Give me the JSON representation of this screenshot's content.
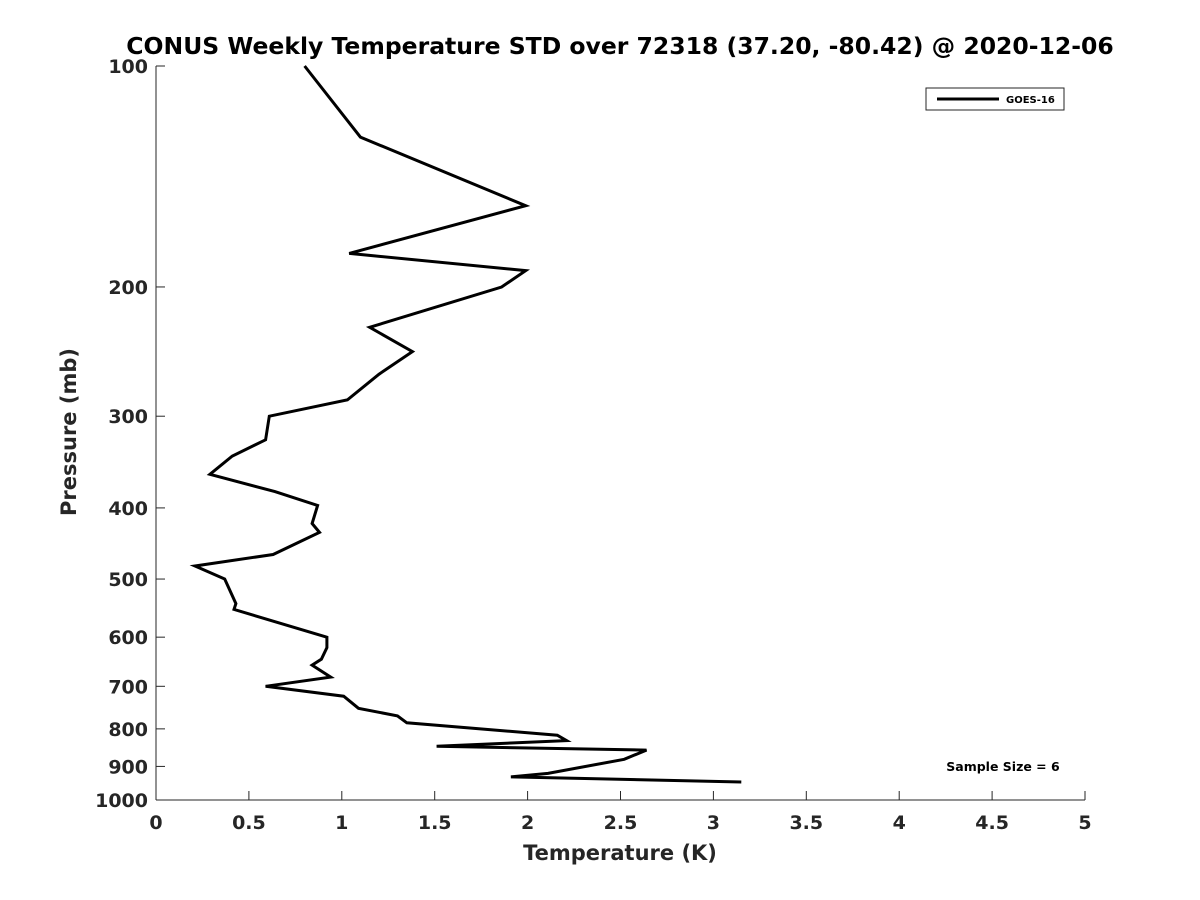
{
  "chart_data": {
    "type": "line",
    "title": "CONUS Weekly Temperature STD over 72318 (37.20, -80.42) @ 2020-12-06",
    "xlabel": "Temperature (K)",
    "ylabel": "Pressure (mb)",
    "xlim": [
      0,
      5
    ],
    "ylim": [
      100,
      1000
    ],
    "y_scale": "log",
    "y_reversed": true,
    "x_ticks": [
      "0",
      "0.5",
      "1",
      "1.5",
      "2",
      "2.5",
      "3",
      "3.5",
      "4",
      "4.5",
      "5"
    ],
    "y_ticks": [
      "100",
      "200",
      "300",
      "400",
      "500",
      "600",
      "700",
      "800",
      "900",
      "1000"
    ],
    "grid": false,
    "legend": {
      "position": "top-right",
      "entries": [
        "GOES-16"
      ]
    },
    "annotations": [
      "Sample Size = 6"
    ],
    "series": [
      {
        "name": "GOES-16",
        "color": "#000000",
        "points": [
          [
            0.8,
            100
          ],
          [
            1.1,
            125
          ],
          [
            1.99,
            155
          ],
          [
            1.04,
            180
          ],
          [
            1.99,
            190
          ],
          [
            1.86,
            200
          ],
          [
            1.15,
            227
          ],
          [
            1.38,
            245
          ],
          [
            1.2,
            263
          ],
          [
            1.03,
            285
          ],
          [
            0.61,
            300
          ],
          [
            0.59,
            323
          ],
          [
            0.41,
            340
          ],
          [
            0.29,
            360
          ],
          [
            0.64,
            380
          ],
          [
            0.87,
            397
          ],
          [
            0.84,
            420
          ],
          [
            0.88,
            432
          ],
          [
            0.63,
            463
          ],
          [
            0.21,
            480
          ],
          [
            0.37,
            500
          ],
          [
            0.43,
            540
          ],
          [
            0.42,
            550
          ],
          [
            0.92,
            600
          ],
          [
            0.92,
            620
          ],
          [
            0.89,
            643
          ],
          [
            0.84,
            655
          ],
          [
            0.94,
            680
          ],
          [
            0.59,
            700
          ],
          [
            1.01,
            722
          ],
          [
            1.09,
            750
          ],
          [
            1.3,
            768
          ],
          [
            1.35,
            785
          ],
          [
            2.16,
            816
          ],
          [
            2.21,
            830
          ],
          [
            1.51,
            845
          ],
          [
            2.64,
            855
          ],
          [
            2.52,
            880
          ],
          [
            2.11,
            920
          ],
          [
            1.91,
            930
          ],
          [
            3.15,
            945
          ]
        ]
      }
    ]
  }
}
